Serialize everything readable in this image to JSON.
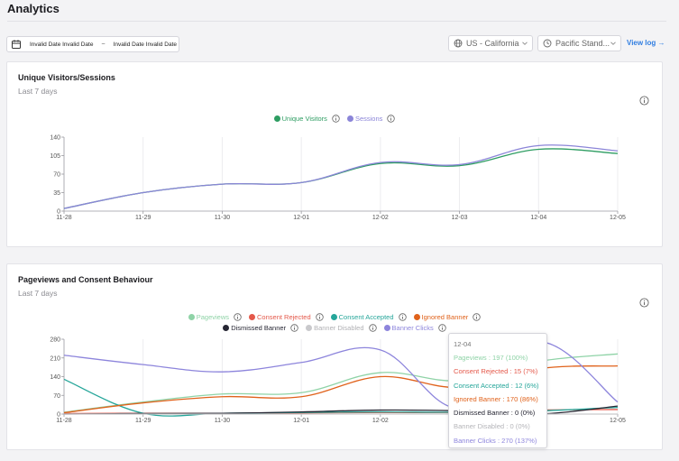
{
  "page": {
    "title": "Analytics"
  },
  "filters": {
    "date_start": "Invalid Date Invalid Date",
    "date_sep": "~",
    "date_end": "Invalid Date Invalid Date",
    "location": "US - California",
    "timezone": "Pacific Stand...",
    "view_log": "View log →"
  },
  "icons": {
    "calendar": "calendar-icon",
    "globe": "globe-icon",
    "clock": "clock-icon",
    "chevron": "chevron-down-icon",
    "info": "info-icon"
  },
  "card1": {
    "title": "Unique Visitors/Sessions",
    "subtitle": "Last 7 days",
    "legend": [
      {
        "label": "Unique Visitors",
        "color": "#2e9d62"
      },
      {
        "label": "Sessions",
        "color": "#8b85d8"
      }
    ]
  },
  "card2": {
    "title": "Pageviews and Consent Behaviour",
    "subtitle": "Last 7 days",
    "legend_row1": [
      {
        "label": "Pageviews",
        "color": "#8fd3a7"
      },
      {
        "label": "Consent Rejected",
        "color": "#e4584a"
      },
      {
        "label": "Consent Accepted",
        "color": "#26a69a"
      },
      {
        "label": "Ignored Banner",
        "color": "#e0621b"
      }
    ],
    "legend_row2": [
      {
        "label": "Dismissed Banner",
        "color": "#262633"
      },
      {
        "label": "Banner Disabled",
        "color": "#c9c9cc"
      },
      {
        "label": "Banner Clicks",
        "color": "#8d85dc"
      }
    ]
  },
  "tooltip": {
    "title": "12-04",
    "rows": [
      {
        "text": "Pageviews : 197 (100%)",
        "color": "#8fd3a7"
      },
      {
        "text": "Consent Rejected : 15 (7%)",
        "color": "#e4584a"
      },
      {
        "text": "Consent Accepted : 12 (6%)",
        "color": "#26a69a"
      },
      {
        "text": "Ignored Banner : 170 (86%)",
        "color": "#e0621b"
      },
      {
        "text": "Dismissed Banner : 0 (0%)",
        "color": "#262633"
      },
      {
        "text": "Banner Disabled : 0 (0%)",
        "color": "#b5b5b9"
      },
      {
        "text": "Banner Clicks : 270 (137%)",
        "color": "#8d85dc"
      }
    ]
  },
  "chart_data": [
    {
      "type": "line",
      "title": "Unique Visitors/Sessions",
      "categories": [
        "11-28",
        "11-29",
        "11-30",
        "12-01",
        "12-02",
        "12-03",
        "12-04",
        "12-05"
      ],
      "yticks": [
        0,
        35,
        70,
        105,
        140
      ],
      "ylim": [
        0,
        140
      ],
      "grid": "vertical",
      "legend_position": "top-center",
      "series": [
        {
          "name": "Unique Visitors",
          "color": "#2e9d62",
          "values": [
            5,
            35,
            51,
            54,
            90,
            86,
            117,
            109
          ]
        },
        {
          "name": "Sessions",
          "color": "#8b85d8",
          "values": [
            5,
            35,
            51,
            54,
            92,
            88,
            124,
            114
          ]
        }
      ]
    },
    {
      "type": "line",
      "title": "Pageviews and Consent Behaviour",
      "categories": [
        "11-28",
        "11-29",
        "11-30",
        "12-01",
        "12-02",
        "12-03",
        "12-04",
        "12-05"
      ],
      "yticks": [
        0,
        70,
        140,
        210,
        280
      ],
      "ylim": [
        0,
        280
      ],
      "grid": "vertical",
      "legend_position": "top-center",
      "series": [
        {
          "name": "Pageviews",
          "color": "#8fd3a7",
          "values": [
            7,
            45,
            75,
            80,
            155,
            125,
            197,
            225
          ]
        },
        {
          "name": "Consent Rejected",
          "color": "#e4584a",
          "values": [
            2,
            3,
            3,
            4,
            6,
            6,
            15,
            17
          ]
        },
        {
          "name": "Consent Accepted",
          "color": "#26a69a",
          "values": [
            130,
            3,
            3,
            6,
            8,
            7,
            12,
            25
          ]
        },
        {
          "name": "Ignored Banner",
          "color": "#e0621b",
          "values": [
            5,
            42,
            65,
            65,
            140,
            100,
            170,
            180
          ]
        },
        {
          "name": "Dismissed Banner",
          "color": "#262633",
          "values": [
            0,
            2,
            3,
            8,
            15,
            12,
            0,
            30
          ]
        },
        {
          "name": "Banner Disabled",
          "color": "#c9c9cc",
          "values": [
            0,
            0,
            0,
            0,
            0,
            0,
            0,
            0
          ]
        },
        {
          "name": "Banner Clicks",
          "color": "#8d85dc",
          "values": [
            220,
            185,
            158,
            193,
            240,
            22,
            270,
            45
          ]
        }
      ]
    }
  ]
}
